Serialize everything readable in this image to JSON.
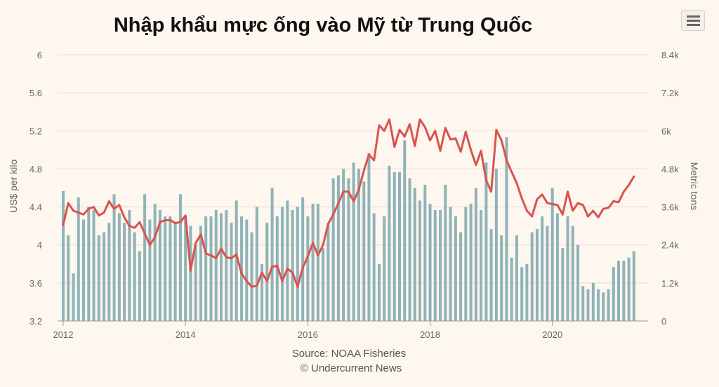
{
  "chart_data": {
    "type": "bar+line",
    "title": "Nhập khẩu mực ống vào Mỹ từ Trung Quốc",
    "ylabel_left": "US$ per kilo",
    "ylabel_right": "Metric tons",
    "ylim_left": [
      3.2,
      6
    ],
    "ylim_right": [
      0,
      8400
    ],
    "yticks_left": [
      "3.2",
      "3.6",
      "4",
      "4.4",
      "4.8",
      "5.2",
      "5.6",
      "6"
    ],
    "yticks_right": [
      "0",
      "1.2k",
      "2.4k",
      "3.6k",
      "4.8k",
      "6k",
      "7.2k",
      "8.4k"
    ],
    "xlim": [
      2012,
      2021.45
    ],
    "xticks": [
      "2012",
      "2014",
      "2016",
      "2018",
      "2020"
    ],
    "source": "Source: NOAA Fisheries",
    "credit": "© Undercurrent News",
    "series": [
      {
        "kind": "bar",
        "axis": "right",
        "color": "#8fb3b8",
        "x": [
          2012.0,
          2012.083,
          2012.167,
          2012.25,
          2012.333,
          2012.417,
          2012.5,
          2012.583,
          2012.667,
          2012.75,
          2012.833,
          2012.917,
          2013.0,
          2013.083,
          2013.167,
          2013.25,
          2013.333,
          2013.417,
          2013.5,
          2013.583,
          2013.667,
          2013.75,
          2013.833,
          2013.917,
          2014.0,
          2014.083,
          2014.167,
          2014.25,
          2014.333,
          2014.417,
          2014.5,
          2014.583,
          2014.667,
          2014.75,
          2014.833,
          2014.917,
          2015.0,
          2015.083,
          2015.167,
          2015.25,
          2015.333,
          2015.417,
          2015.5,
          2015.583,
          2015.667,
          2015.75,
          2015.833,
          2015.917,
          2016.0,
          2016.083,
          2016.167,
          2016.25,
          2016.333,
          2016.417,
          2016.5,
          2016.583,
          2016.667,
          2016.75,
          2016.833,
          2016.917,
          2017.0,
          2017.083,
          2017.167,
          2017.25,
          2017.333,
          2017.417,
          2017.5,
          2017.583,
          2017.667,
          2017.75,
          2017.833,
          2017.917,
          2018.0,
          2018.083,
          2018.167,
          2018.25,
          2018.333,
          2018.417,
          2018.5,
          2018.583,
          2018.667,
          2018.75,
          2018.833,
          2018.917,
          2019.0,
          2019.083,
          2019.167,
          2019.25,
          2019.333,
          2019.417,
          2019.5,
          2019.583,
          2019.667,
          2019.75,
          2019.833,
          2019.917,
          2020.0,
          2020.083,
          2020.167,
          2020.25,
          2020.333,
          2020.417,
          2020.5,
          2020.583,
          2020.667,
          2020.75,
          2020.833,
          2020.917,
          2021.0,
          2021.083,
          2021.167,
          2021.25,
          2021.333
        ],
        "values": [
          4100,
          2700,
          1500,
          3900,
          3200,
          3600,
          3500,
          2700,
          2800,
          3100,
          4000,
          3400,
          3100,
          3500,
          2800,
          2200,
          4000,
          3200,
          3700,
          3500,
          3300,
          3300,
          3100,
          4000,
          3300,
          3000,
          2400,
          3000,
          3300,
          3300,
          3500,
          3400,
          3500,
          3100,
          3800,
          3300,
          3200,
          2800,
          3600,
          1800,
          3100,
          4200,
          3300,
          3600,
          3800,
          3500,
          3600,
          3900,
          3300,
          3700,
          3700,
          2300,
          3100,
          4500,
          4600,
          4800,
          4500,
          5000,
          4800,
          4400,
          5300,
          3400,
          1800,
          3300,
          4900,
          4700,
          4700,
          5700,
          4500,
          4200,
          3800,
          4300,
          3700,
          3500,
          3500,
          4300,
          3600,
          3300,
          2800,
          3600,
          3700,
          4200,
          3500,
          5000,
          2900,
          4800,
          2700,
          5800,
          2000,
          2700,
          1700,
          1800,
          2800,
          2900,
          3300,
          3000,
          4200,
          3400,
          2300,
          3300,
          3000,
          2400,
          1100,
          1000,
          1200,
          1000,
          900,
          1000,
          1700,
          1900,
          1900,
          2000,
          2200
        ]
      },
      {
        "kind": "line",
        "axis": "left",
        "color": "#d9534f",
        "x": [
          2012.0,
          2012.083,
          2012.167,
          2012.25,
          2012.333,
          2012.417,
          2012.5,
          2012.583,
          2012.667,
          2012.75,
          2012.833,
          2012.917,
          2013.0,
          2013.083,
          2013.167,
          2013.25,
          2013.333,
          2013.417,
          2013.5,
          2013.583,
          2013.667,
          2013.75,
          2013.833,
          2013.917,
          2014.0,
          2014.083,
          2014.167,
          2014.25,
          2014.333,
          2014.417,
          2014.5,
          2014.583,
          2014.667,
          2014.75,
          2014.833,
          2014.917,
          2015.0,
          2015.083,
          2015.167,
          2015.25,
          2015.333,
          2015.417,
          2015.5,
          2015.583,
          2015.667,
          2015.75,
          2015.833,
          2015.917,
          2016.0,
          2016.083,
          2016.167,
          2016.25,
          2016.333,
          2016.417,
          2016.5,
          2016.583,
          2016.667,
          2016.75,
          2016.833,
          2016.917,
          2017.0,
          2017.083,
          2017.167,
          2017.25,
          2017.333,
          2017.417,
          2017.5,
          2017.583,
          2017.667,
          2017.75,
          2017.833,
          2017.917,
          2018.0,
          2018.083,
          2018.167,
          2018.25,
          2018.333,
          2018.417,
          2018.5,
          2018.583,
          2018.667,
          2018.75,
          2018.833,
          2018.917,
          2019.0,
          2019.083,
          2019.167,
          2019.25,
          2019.333,
          2019.417,
          2019.5,
          2019.583,
          2019.667,
          2019.75,
          2019.833,
          2019.917,
          2020.0,
          2020.083,
          2020.167,
          2020.25,
          2020.333,
          2020.417,
          2020.5,
          2020.583,
          2020.667,
          2020.75,
          2020.833,
          2020.917,
          2021.0,
          2021.083,
          2021.167,
          2021.25,
          2021.333
        ],
        "values": [
          4.21,
          4.44,
          4.36,
          4.34,
          4.32,
          4.38,
          4.4,
          4.31,
          4.34,
          4.46,
          4.38,
          4.42,
          4.29,
          4.2,
          4.18,
          4.24,
          4.12,
          4.0,
          4.08,
          4.24,
          4.26,
          4.26,
          4.23,
          4.24,
          4.31,
          3.73,
          4.02,
          4.11,
          3.91,
          3.89,
          3.86,
          3.96,
          3.87,
          3.86,
          3.9,
          3.7,
          3.62,
          3.56,
          3.57,
          3.71,
          3.62,
          3.77,
          3.78,
          3.62,
          3.75,
          3.71,
          3.56,
          3.76,
          3.88,
          4.02,
          3.89,
          4.0,
          4.22,
          4.32,
          4.44,
          4.56,
          4.56,
          4.46,
          4.58,
          4.78,
          4.95,
          4.89,
          5.26,
          5.2,
          5.32,
          5.03,
          5.21,
          5.14,
          5.27,
          5.04,
          5.32,
          5.24,
          5.1,
          5.2,
          4.99,
          5.23,
          5.11,
          5.12,
          4.98,
          5.19,
          5.0,
          4.84,
          4.99,
          4.68,
          4.56,
          5.21,
          5.1,
          4.89,
          4.77,
          4.65,
          4.49,
          4.36,
          4.3,
          4.48,
          4.53,
          4.44,
          4.43,
          4.42,
          4.32,
          4.56,
          4.36,
          4.44,
          4.42,
          4.3,
          4.36,
          4.29,
          4.38,
          4.39,
          4.46,
          4.45,
          4.56,
          4.63,
          4.72
        ]
      }
    ]
  }
}
